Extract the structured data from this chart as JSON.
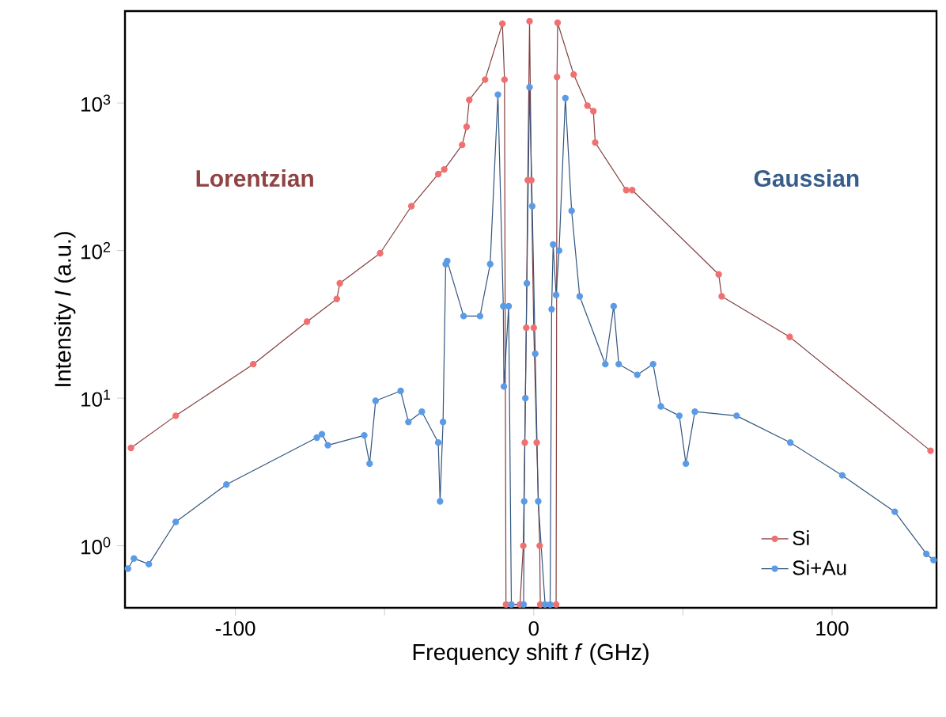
{
  "chart_data": {
    "type": "line",
    "xlabel": "Frequency shift *f* (GHz)",
    "ylabel": "Intensity *I* (a.u.)",
    "annotations": [
      "Lorentzian",
      "Gaussian"
    ],
    "log": "y",
    "marker": "circle",
    "line_style": "solid",
    "legend": "bottom right",
    "xlim": [
      -137,
      135
    ],
    "ylim": [
      0.38,
      4200
    ],
    "xticks": [
      -100,
      {
        "value": -50,
        "label": null
      },
      0,
      {
        "value": 50,
        "label": null
      },
      100
    ],
    "yticks": [
      {
        "value": 1,
        "label": "10$^{0}$"
      },
      {
        "value": 10,
        "label": "10$^{1}$"
      },
      {
        "value": 100,
        "label": "10$^{2}$"
      },
      {
        "value": 1000,
        "label": "10$^{3}$"
      }
    ],
    "series": [
      {
        "name": "Si",
        "color": "#f07070",
        "x": [
          -135,
          -120,
          -94,
          -76,
          -66,
          -65,
          -51.5,
          -41,
          -32,
          -30,
          -24,
          -22.5,
          -21.6,
          -16.3,
          -10.5,
          -9.8,
          -9.3,
          -4.6,
          -3.5,
          -3,
          -2.5,
          -2,
          -1.4,
          -0.8,
          0,
          1,
          2,
          2.2,
          7.5,
          7.8,
          8,
          13.4,
          18,
          20,
          20.6,
          31,
          33,
          62,
          63,
          85.8,
          133
        ],
        "values": [
          4.6,
          7.6,
          17,
          33,
          47,
          60,
          96,
          200,
          330,
          355,
          520,
          690,
          1050,
          1440,
          3450,
          1440,
          0.4,
          0.4,
          1,
          5,
          30,
          300,
          3580,
          300,
          30,
          5,
          1,
          0.4,
          0.4,
          1500,
          3500,
          1560,
          960,
          880,
          540,
          257,
          257,
          69,
          49,
          26,
          4.4
        ]
      },
      {
        "name": "Si+Au",
        "color": "#5b9be6",
        "x": [
          -136,
          -134,
          -129,
          -120,
          -103,
          -72.7,
          -71,
          -69,
          -56.8,
          -55,
          -53,
          -44.6,
          -42,
          -37.5,
          -32,
          -31.4,
          -30.4,
          -29.5,
          -29,
          -23.5,
          -18,
          -14.6,
          -12,
          -10.2,
          -10,
          -8.4,
          -7.5,
          -3.4,
          -3.2,
          -2.8,
          -2.3,
          -1.4,
          -0.5,
          0.5,
          1.5,
          3.8,
          5.5,
          6,
          6.5,
          7.5,
          8.5,
          10.6,
          12.7,
          15.4,
          24,
          26.8,
          28.5,
          34.7,
          40,
          42.6,
          48.8,
          51,
          54,
          68,
          86,
          103.4,
          121,
          131.6,
          134
        ],
        "values": [
          0.7,
          0.82,
          0.75,
          1.45,
          2.6,
          5.4,
          5.7,
          4.8,
          5.6,
          3.6,
          9.6,
          11.2,
          6.9,
          8.1,
          5,
          2,
          6.9,
          81,
          85,
          36,
          36,
          81,
          1140,
          42,
          12,
          42,
          0.4,
          0.4,
          2,
          10,
          60,
          1280,
          200,
          20,
          2,
          0.4,
          0.4,
          40,
          110,
          50,
          100,
          1080,
          186,
          49,
          17,
          42,
          17,
          14.4,
          17,
          8.8,
          7.6,
          3.6,
          8.1,
          7.6,
          5,
          3,
          1.7,
          0.88,
          0.8
        ]
      }
    ]
  }
}
